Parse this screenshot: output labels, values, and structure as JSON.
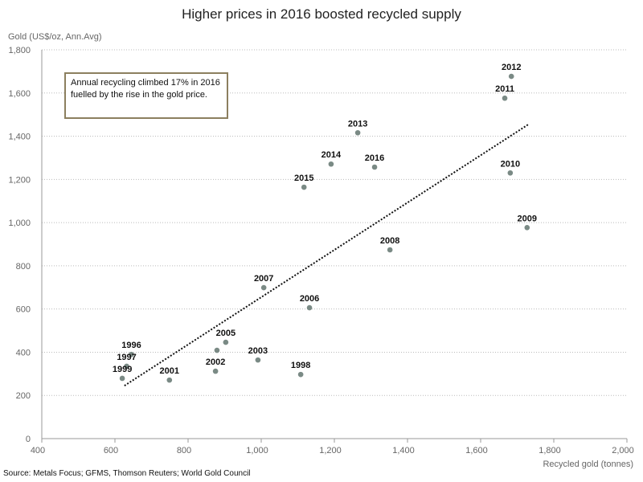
{
  "chart_data": {
    "type": "scatter",
    "title": "Higher prices in 2016 boosted recycled supply",
    "ylabel": "Gold (US$/oz, Ann.Avg)",
    "xlabel": "Recycled gold (tonnes)",
    "xlim": [
      400,
      2000
    ],
    "ylim": [
      0,
      1800
    ],
    "xticks": [
      "400",
      "600",
      "800",
      "1,000",
      "1,200",
      "1,400",
      "1,600",
      "1,800",
      "2,000"
    ],
    "yticks": [
      "0",
      "200",
      "400",
      "600",
      "800",
      "1,000",
      "1,200",
      "1,400",
      "1,600",
      "1,800"
    ],
    "grid": "horizontal dotted",
    "point_color": "#7a8a85",
    "points": [
      {
        "label": "1996",
        "x": 645,
        "y": 390
      },
      {
        "label": "1997",
        "x": 632,
        "y": 335
      },
      {
        "label": "1998",
        "x": 1108,
        "y": 297
      },
      {
        "label": "1999",
        "x": 620,
        "y": 279
      },
      {
        "label": "",
        "x": 879,
        "y": 409
      },
      {
        "label": "2001",
        "x": 749,
        "y": 271
      },
      {
        "label": "2002",
        "x": 875,
        "y": 312
      },
      {
        "label": "2003",
        "x": 991,
        "y": 364
      },
      {
        "label": "2005",
        "x": 903,
        "y": 446
      },
      {
        "label": "2006",
        "x": 1132,
        "y": 606
      },
      {
        "label": "2007",
        "x": 1007,
        "y": 699
      },
      {
        "label": "2008",
        "x": 1352,
        "y": 874
      },
      {
        "label": "2009",
        "x": 1727,
        "y": 977
      },
      {
        "label": "2010",
        "x": 1681,
        "y": 1230
      },
      {
        "label": "2011",
        "x": 1666,
        "y": 1576
      },
      {
        "label": "2012",
        "x": 1684,
        "y": 1677
      },
      {
        "label": "2013",
        "x": 1264,
        "y": 1416
      },
      {
        "label": "2014",
        "x": 1191,
        "y": 1271
      },
      {
        "label": "2015",
        "x": 1117,
        "y": 1164
      },
      {
        "label": "2016",
        "x": 1310,
        "y": 1257
      }
    ],
    "trendline": {
      "style": "dotted",
      "from": [
        626,
        245
      ],
      "to": [
        1730,
        1454
      ]
    },
    "annotation": "Annual recycling climbed 17% in 2016 fuelled by the rise in the gold price."
  },
  "source": "Source: Metals Focus; GFMS, Thomson Reuters; World Gold Council"
}
